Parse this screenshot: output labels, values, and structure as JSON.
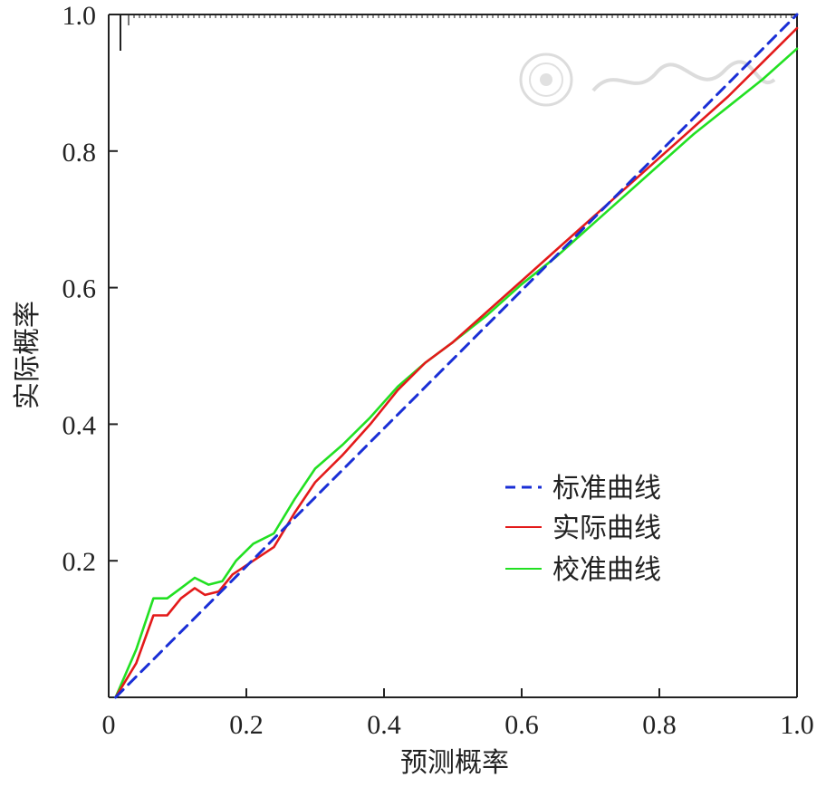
{
  "chart_data": {
    "type": "line",
    "xlabel": "预测概率",
    "ylabel": "实际概率",
    "xlim": [
      0,
      1.0
    ],
    "ylim": [
      0,
      1.0
    ],
    "x_ticks": [
      "0",
      "0.2",
      "0.4",
      "0.6",
      "0.8",
      "1.0"
    ],
    "y_ticks": [
      "0.2",
      "0.4",
      "0.6",
      "0.8",
      "1.0"
    ],
    "x_tick_values": [
      0,
      0.2,
      0.4,
      0.6,
      0.8,
      1.0
    ],
    "y_tick_values": [
      0.2,
      0.4,
      0.6,
      0.8,
      1.0
    ],
    "legend_position": "lower-right",
    "grid": false,
    "rug_ticks": "top",
    "series": [
      {
        "name": "标准曲线",
        "color": "#1a2fd6",
        "style": "dashed",
        "x": [
          0.01,
          1.0
        ],
        "y": [
          0.0,
          1.0
        ]
      },
      {
        "name": "实际曲线",
        "color": "#e31a1a",
        "style": "solid",
        "x": [
          0.01,
          0.04,
          0.065,
          0.085,
          0.105,
          0.125,
          0.14,
          0.16,
          0.18,
          0.21,
          0.24,
          0.27,
          0.3,
          0.34,
          0.38,
          0.42,
          0.46,
          0.5,
          0.55,
          0.6,
          0.65,
          0.7,
          0.75,
          0.8,
          0.85,
          0.9,
          0.95,
          1.0
        ],
        "y": [
          0.0,
          0.05,
          0.12,
          0.12,
          0.145,
          0.16,
          0.15,
          0.155,
          0.18,
          0.2,
          0.22,
          0.27,
          0.315,
          0.355,
          0.4,
          0.45,
          0.49,
          0.52,
          0.565,
          0.61,
          0.655,
          0.7,
          0.745,
          0.79,
          0.835,
          0.88,
          0.93,
          0.98
        ]
      },
      {
        "name": "校准曲线",
        "color": "#22e022",
        "style": "solid",
        "x": [
          0.01,
          0.04,
          0.065,
          0.085,
          0.105,
          0.125,
          0.145,
          0.165,
          0.185,
          0.21,
          0.24,
          0.27,
          0.3,
          0.34,
          0.38,
          0.42,
          0.46,
          0.5,
          0.55,
          0.6,
          0.65,
          0.7,
          0.75,
          0.8,
          0.85,
          0.9,
          0.95,
          1.0
        ],
        "y": [
          0.0,
          0.07,
          0.145,
          0.145,
          0.16,
          0.175,
          0.165,
          0.17,
          0.2,
          0.225,
          0.24,
          0.29,
          0.335,
          0.37,
          0.41,
          0.455,
          0.49,
          0.52,
          0.56,
          0.605,
          0.645,
          0.69,
          0.735,
          0.78,
          0.825,
          0.865,
          0.905,
          0.95
        ]
      }
    ]
  }
}
